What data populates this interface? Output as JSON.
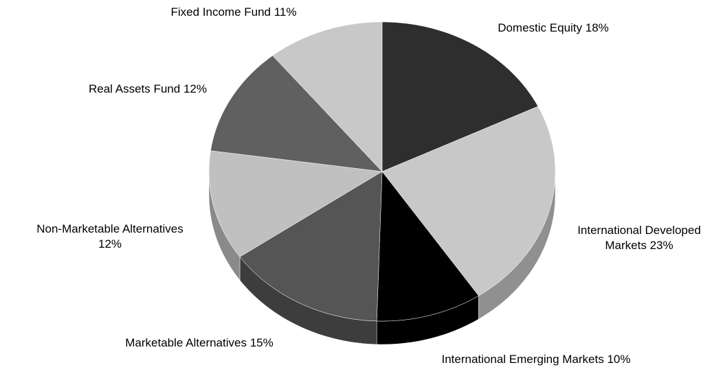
{
  "chart_data": {
    "type": "pie",
    "categories": [
      "Domestic Equity",
      "International Developed Markets",
      "International Emerging Markets",
      "Marketable Alternatives",
      "Non-Marketable Alternatives",
      "Real Assets Fund",
      "Fixed Income Fund"
    ],
    "values": [
      18,
      23,
      10,
      15,
      12,
      12,
      11
    ],
    "value_labels": [
      "18%",
      "23%",
      "10%",
      "15%",
      "12%",
      "12%",
      "11%"
    ],
    "colors": [
      "#2e2e2e",
      "#c8c8c8",
      "#000000",
      "#555555",
      "#c0c0c0",
      "#606060",
      "#c8c8c8"
    ]
  }
}
